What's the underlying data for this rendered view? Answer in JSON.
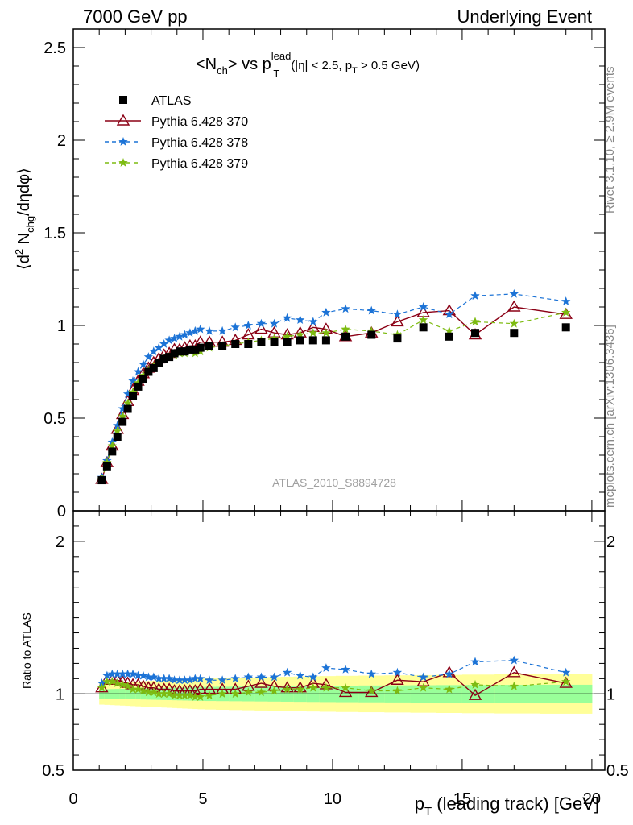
{
  "header": {
    "left": "7000 GeV pp",
    "right": "Underlying Event"
  },
  "side": {
    "rivet": "Rivet 3.1.10, ≥ 2.9M events",
    "mcplots": "mcplots.cern.ch [arXiv:1306.3436]"
  },
  "plot": {
    "title_main": "<N",
    "title_sub1": "ch",
    "title_mid": "> vs p",
    "title_sup": "lead",
    "title_sub2": "T",
    "title_cut1": "(|η| < 2.5, p",
    "title_cut_sub": "T",
    "title_cut2": " > 0.5 GeV)",
    "ylabel": "⟨d² N_chg/dηdφ⟩",
    "watermark": "ATLAS_2010_S8894728",
    "ratio_ylabel": "Ratio to ATLAS",
    "xlabel": "p_T (leading track) [GeV]"
  },
  "legend": [
    {
      "label": "ATLAS",
      "color": "#000000",
      "marker": "square"
    },
    {
      "label": "Pythia 6.428 370",
      "color": "#8b0015",
      "marker": "triangle"
    },
    {
      "label": "Pythia 6.428 378",
      "color": "#1c73d6",
      "marker": "star"
    },
    {
      "label": "Pythia 6.428 379",
      "color": "#7dbb11",
      "marker": "star"
    }
  ],
  "chart_data": {
    "type": "scatter",
    "x": [
      1.1,
      1.3,
      1.5,
      1.7,
      1.9,
      2.1,
      2.3,
      2.5,
      2.7,
      2.9,
      3.1,
      3.3,
      3.5,
      3.7,
      3.9,
      4.1,
      4.3,
      4.5,
      4.7,
      4.9,
      5.25,
      5.75,
      6.25,
      6.75,
      7.25,
      7.75,
      8.25,
      8.75,
      9.25,
      9.75,
      10.5,
      11.5,
      12.5,
      13.5,
      14.5,
      15.5,
      17,
      19
    ],
    "series": [
      {
        "name": "ATLAS",
        "values": [
          0.165,
          0.24,
          0.32,
          0.4,
          0.48,
          0.55,
          0.62,
          0.67,
          0.71,
          0.75,
          0.77,
          0.8,
          0.82,
          0.83,
          0.85,
          0.86,
          0.86,
          0.87,
          0.87,
          0.88,
          0.89,
          0.89,
          0.9,
          0.9,
          0.91,
          0.91,
          0.91,
          0.92,
          0.92,
          0.92,
          0.94,
          0.95,
          0.93,
          0.99,
          0.94,
          0.96,
          0.96,
          0.99
        ]
      },
      {
        "name": "Pythia 6.428 370",
        "values": [
          0.17,
          0.26,
          0.35,
          0.44,
          0.52,
          0.59,
          0.65,
          0.7,
          0.74,
          0.77,
          0.8,
          0.82,
          0.84,
          0.85,
          0.87,
          0.87,
          0.88,
          0.89,
          0.89,
          0.91,
          0.91,
          0.91,
          0.92,
          0.95,
          0.98,
          0.96,
          0.95,
          0.96,
          0.99,
          0.98,
          0.94,
          0.96,
          1.02,
          1.07,
          1.08,
          0.95,
          1.1,
          1.06
        ]
      },
      {
        "name": "Pythia 6.428 378",
        "values": [
          0.18,
          0.27,
          0.37,
          0.46,
          0.55,
          0.63,
          0.7,
          0.75,
          0.79,
          0.83,
          0.86,
          0.88,
          0.9,
          0.92,
          0.93,
          0.94,
          0.95,
          0.96,
          0.97,
          0.98,
          0.97,
          0.97,
          0.99,
          1.0,
          1.01,
          1.01,
          1.04,
          1.03,
          1.02,
          1.07,
          1.09,
          1.08,
          1.06,
          1.1,
          1.06,
          1.16,
          1.17,
          1.13
        ]
      },
      {
        "name": "Pythia 6.428 379",
        "values": [
          0.17,
          0.26,
          0.35,
          0.43,
          0.51,
          0.58,
          0.64,
          0.69,
          0.73,
          0.76,
          0.78,
          0.8,
          0.82,
          0.83,
          0.84,
          0.85,
          0.85,
          0.86,
          0.85,
          0.86,
          0.88,
          0.89,
          0.9,
          0.91,
          0.92,
          0.93,
          0.94,
          0.95,
          0.96,
          0.96,
          0.98,
          0.97,
          0.95,
          1.03,
          0.97,
          1.02,
          1.01,
          1.07
        ]
      }
    ],
    "ratio": {
      "ylim": [
        0.5,
        2.2
      ],
      "series": [
        {
          "name": "Pythia 6.428 370",
          "values": [
            1.04,
            1.09,
            1.09,
            1.09,
            1.08,
            1.07,
            1.06,
            1.06,
            1.05,
            1.04,
            1.04,
            1.03,
            1.03,
            1.03,
            1.02,
            1.02,
            1.02,
            1.02,
            1.02,
            1.03,
            1.03,
            1.03,
            1.03,
            1.05,
            1.07,
            1.05,
            1.04,
            1.04,
            1.07,
            1.06,
            1.01,
            1.01,
            1.09,
            1.08,
            1.14,
            0.99,
            1.14,
            1.07
          ]
        },
        {
          "name": "Pythia 6.428 378",
          "values": [
            1.07,
            1.12,
            1.13,
            1.13,
            1.13,
            1.13,
            1.13,
            1.12,
            1.12,
            1.11,
            1.11,
            1.1,
            1.1,
            1.1,
            1.09,
            1.09,
            1.09,
            1.09,
            1.1,
            1.1,
            1.09,
            1.09,
            1.1,
            1.11,
            1.11,
            1.11,
            1.14,
            1.12,
            1.11,
            1.17,
            1.16,
            1.13,
            1.14,
            1.11,
            1.13,
            1.21,
            1.22,
            1.14
          ]
        },
        {
          "name": "Pythia 6.428 379",
          "values": [
            1.04,
            1.08,
            1.08,
            1.07,
            1.06,
            1.05,
            1.03,
            1.03,
            1.02,
            1.01,
            1.01,
            1.0,
            1.0,
            1.0,
            0.99,
            0.99,
            0.99,
            0.99,
            0.98,
            0.98,
            0.99,
            1.0,
            1.0,
            1.01,
            1.01,
            1.02,
            1.03,
            1.03,
            1.04,
            1.04,
            1.04,
            1.02,
            1.02,
            1.04,
            1.03,
            1.06,
            1.05,
            1.08
          ]
        }
      ]
    },
    "xlabel": "p_T (leading track) [GeV]",
    "ylabel": "⟨d² N_chg/dηdφ⟩",
    "xlim": [
      0,
      20.5
    ],
    "ylim": [
      0,
      2.6
    ],
    "x_ticks": [
      0,
      5,
      10,
      15,
      20
    ],
    "y_ticks": [
      0,
      0.5,
      1,
      1.5,
      2,
      2.5
    ],
    "ratio_ticks": [
      0.5,
      1,
      2
    ],
    "legend_position": "top-left"
  }
}
